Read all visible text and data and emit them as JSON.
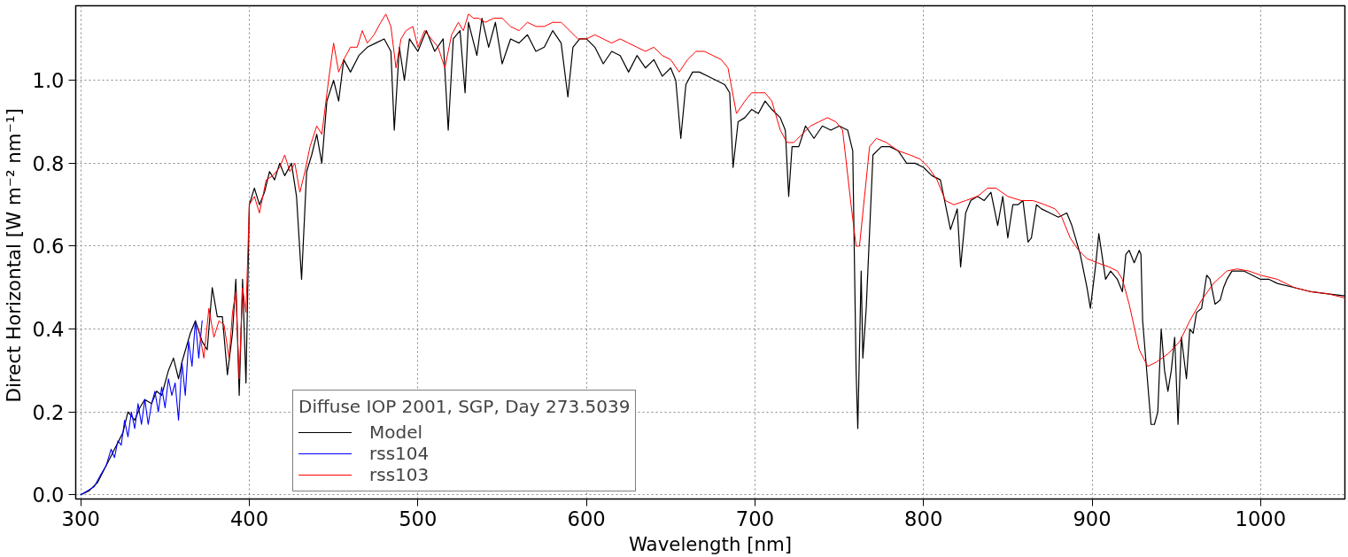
{
  "chart_data": {
    "type": "line",
    "xlabel": "Wavelength [nm]",
    "ylabel": "Direct Horizontal  [W m⁻² nm⁻¹]",
    "legend_title": "Diffuse IOP 2001, SGP, Day 273.5039",
    "xlim": [
      297,
      1050
    ],
    "ylim": [
      -0.01,
      1.18
    ],
    "xticks": [
      300,
      400,
      500,
      600,
      700,
      800,
      900,
      1000
    ],
    "yticks": [
      {
        "value": 0,
        "label": "0.0"
      },
      {
        "value": 0.2,
        "label": "0.2"
      },
      {
        "value": 0.4,
        "label": "0.4"
      },
      {
        "value": 0.6,
        "label": "0.6"
      },
      {
        "value": 0.8,
        "label": "0.8"
      },
      {
        "value": 1,
        "label": "1.0"
      }
    ],
    "grid": true,
    "legend": "bottom left",
    "line_style": "solid",
    "series": [
      {
        "name": "Model",
        "color": "#000000",
        "x": [
          300,
          305,
          310,
          315,
          320,
          325,
          328,
          332,
          335,
          338,
          342,
          345,
          348,
          352,
          355,
          358,
          360,
          365,
          368,
          372,
          375,
          378,
          381,
          384,
          387,
          390,
          392,
          394,
          396,
          398,
          400,
          403,
          406,
          409,
          412,
          415,
          418,
          421,
          425,
          428,
          431,
          434,
          437,
          440,
          443,
          446,
          450,
          453,
          456,
          460,
          465,
          470,
          475,
          480,
          484,
          486,
          489,
          492,
          495,
          500,
          505,
          510,
          515,
          518,
          521,
          525,
          528,
          530,
          535,
          538,
          542,
          546,
          550,
          555,
          560,
          565,
          570,
          575,
          580,
          585,
          589,
          592,
          596,
          600,
          605,
          610,
          615,
          620,
          625,
          630,
          635,
          640,
          645,
          650,
          653,
          656,
          659,
          663,
          667,
          672,
          677,
          682,
          685,
          687,
          690,
          694,
          698,
          702,
          706,
          710,
          715,
          718,
          720,
          722,
          726,
          730,
          735,
          740,
          745,
          750,
          755,
          758,
          760,
          761,
          763,
          764,
          766,
          770,
          775,
          780,
          785,
          790,
          795,
          800,
          805,
          810,
          813,
          816,
          820,
          822,
          825,
          828,
          832,
          836,
          840,
          844,
          847,
          850,
          853,
          856,
          859,
          862,
          864,
          867,
          870,
          875,
          880,
          885,
          888,
          893,
          897,
          899,
          902,
          904,
          908,
          911,
          915,
          918,
          920,
          922,
          925,
          928,
          929,
          930,
          933,
          935,
          937,
          939,
          941,
          943,
          945,
          947,
          949,
          951,
          953,
          956,
          958,
          960,
          962,
          965,
          968,
          970,
          973,
          976,
          978,
          980,
          983,
          990,
          995,
          1000,
          1005,
          1010,
          1020,
          1030,
          1040,
          1050
        ],
        "values": [
          0.0,
          0.01,
          0.03,
          0.07,
          0.11,
          0.15,
          0.2,
          0.18,
          0.21,
          0.23,
          0.22,
          0.25,
          0.24,
          0.3,
          0.33,
          0.28,
          0.32,
          0.39,
          0.42,
          0.37,
          0.35,
          0.5,
          0.43,
          0.43,
          0.29,
          0.39,
          0.52,
          0.24,
          0.52,
          0.27,
          0.7,
          0.74,
          0.7,
          0.73,
          0.78,
          0.76,
          0.8,
          0.77,
          0.8,
          0.72,
          0.52,
          0.78,
          0.82,
          0.87,
          0.8,
          0.95,
          1.0,
          0.95,
          1.05,
          1.02,
          1.06,
          1.08,
          1.09,
          1.1,
          1.07,
          0.88,
          1.08,
          1.0,
          1.1,
          1.07,
          1.12,
          1.07,
          1.1,
          0.88,
          1.1,
          1.12,
          0.97,
          1.14,
          1.06,
          1.15,
          1.08,
          1.14,
          1.04,
          1.1,
          1.09,
          1.11,
          1.07,
          1.08,
          1.12,
          1.09,
          0.96,
          1.08,
          1.1,
          1.1,
          1.08,
          1.04,
          1.07,
          1.06,
          1.02,
          1.06,
          1.03,
          1.05,
          1.01,
          1.03,
          1.0,
          0.86,
          0.99,
          1.02,
          1.02,
          1.01,
          1.0,
          0.99,
          0.97,
          0.79,
          0.9,
          0.91,
          0.93,
          0.92,
          0.95,
          0.93,
          0.91,
          0.88,
          0.72,
          0.84,
          0.84,
          0.89,
          0.86,
          0.89,
          0.88,
          0.89,
          0.88,
          0.83,
          0.3,
          0.16,
          0.54,
          0.33,
          0.45,
          0.82,
          0.84,
          0.84,
          0.83,
          0.8,
          0.8,
          0.79,
          0.77,
          0.76,
          0.7,
          0.64,
          0.69,
          0.55,
          0.68,
          0.71,
          0.72,
          0.71,
          0.73,
          0.65,
          0.72,
          0.62,
          0.7,
          0.7,
          0.71,
          0.61,
          0.62,
          0.7,
          0.69,
          0.68,
          0.67,
          0.68,
          0.65,
          0.58,
          0.5,
          0.45,
          0.55,
          0.63,
          0.52,
          0.54,
          0.52,
          0.49,
          0.58,
          0.59,
          0.56,
          0.59,
          0.58,
          0.42,
          0.27,
          0.17,
          0.17,
          0.2,
          0.4,
          0.3,
          0.25,
          0.3,
          0.38,
          0.17,
          0.38,
          0.28,
          0.4,
          0.39,
          0.44,
          0.45,
          0.53,
          0.52,
          0.46,
          0.47,
          0.5,
          0.52,
          0.54,
          0.54,
          0.53,
          0.52,
          0.52,
          0.51,
          0.5,
          0.49,
          0.485,
          0.48
        ]
      },
      {
        "name": "rss104",
        "color": "#0000ff",
        "x": [
          300,
          304,
          308,
          312,
          315,
          318,
          320,
          322,
          324,
          326,
          328,
          330,
          332,
          334,
          336,
          338,
          340,
          342,
          344,
          346,
          348,
          350,
          352,
          354,
          356,
          358,
          360,
          362,
          364,
          366,
          368,
          370,
          372
        ],
        "values": [
          0.0,
          0.01,
          0.02,
          0.05,
          0.07,
          0.11,
          0.09,
          0.13,
          0.12,
          0.18,
          0.14,
          0.2,
          0.16,
          0.22,
          0.17,
          0.23,
          0.17,
          0.22,
          0.25,
          0.2,
          0.26,
          0.21,
          0.28,
          0.24,
          0.27,
          0.18,
          0.32,
          0.24,
          0.37,
          0.31,
          0.42,
          0.33,
          0.42
        ]
      },
      {
        "name": "rss103",
        "color": "#ff0000",
        "x": [
          370,
          373,
          376,
          379,
          382,
          385,
          388,
          390,
          392,
          394,
          396,
          398,
          400,
          403,
          406,
          410,
          414,
          418,
          421,
          424,
          427,
          430,
          433,
          436,
          440,
          443,
          447,
          450,
          453,
          456,
          460,
          464,
          467,
          470,
          474,
          478,
          481,
          484,
          487,
          490,
          493,
          497,
          500,
          504,
          508,
          512,
          516,
          520,
          524,
          527,
          530,
          533,
          536,
          540,
          545,
          550,
          555,
          560,
          565,
          570,
          575,
          580,
          585,
          590,
          595,
          600,
          605,
          610,
          615,
          620,
          625,
          630,
          635,
          640,
          645,
          650,
          655,
          660,
          665,
          670,
          675,
          680,
          684,
          689,
          694,
          698,
          702,
          706,
          710,
          715,
          719,
          723,
          728,
          733,
          738,
          743,
          748,
          752,
          757,
          760,
          762,
          765,
          768,
          772,
          778,
          785,
          792,
          798,
          803,
          808,
          813,
          818,
          825,
          832,
          838,
          843,
          850,
          858,
          865,
          872,
          878,
          882,
          887,
          892,
          897,
          903,
          910,
          915,
          918,
          922,
          928,
          933,
          938,
          945,
          952,
          958,
          965,
          972,
          980,
          986,
          993,
          1000,
          1010,
          1020,
          1030,
          1040,
          1050
        ],
        "values": [
          0.4,
          0.33,
          0.45,
          0.38,
          0.42,
          0.41,
          0.33,
          0.44,
          0.49,
          0.28,
          0.5,
          0.44,
          0.7,
          0.72,
          0.68,
          0.76,
          0.77,
          0.79,
          0.82,
          0.78,
          0.8,
          0.73,
          0.78,
          0.84,
          0.89,
          0.87,
          1.0,
          1.09,
          1.02,
          1.05,
          1.08,
          1.08,
          1.12,
          1.09,
          1.11,
          1.14,
          1.16,
          1.13,
          1.03,
          1.1,
          1.12,
          1.13,
          1.08,
          1.12,
          1.1,
          1.08,
          1.03,
          1.11,
          1.14,
          1.12,
          1.16,
          1.15,
          1.15,
          1.14,
          1.15,
          1.15,
          1.13,
          1.12,
          1.14,
          1.13,
          1.13,
          1.14,
          1.14,
          1.12,
          1.1,
          1.1,
          1.11,
          1.1,
          1.09,
          1.1,
          1.09,
          1.08,
          1.07,
          1.08,
          1.06,
          1.05,
          1.02,
          1.05,
          1.07,
          1.07,
          1.06,
          1.05,
          1.03,
          0.92,
          0.95,
          0.97,
          0.97,
          0.97,
          0.95,
          0.88,
          0.85,
          0.85,
          0.87,
          0.89,
          0.9,
          0.91,
          0.9,
          0.88,
          0.7,
          0.6,
          0.6,
          0.72,
          0.84,
          0.86,
          0.85,
          0.83,
          0.82,
          0.81,
          0.79,
          0.76,
          0.71,
          0.7,
          0.71,
          0.72,
          0.74,
          0.74,
          0.72,
          0.71,
          0.71,
          0.7,
          0.69,
          0.67,
          0.62,
          0.59,
          0.57,
          0.56,
          0.55,
          0.54,
          0.52,
          0.46,
          0.35,
          0.31,
          0.32,
          0.34,
          0.37,
          0.42,
          0.47,
          0.51,
          0.54,
          0.545,
          0.54,
          0.53,
          0.52,
          0.5,
          0.49,
          0.485,
          0.475
        ]
      }
    ]
  }
}
